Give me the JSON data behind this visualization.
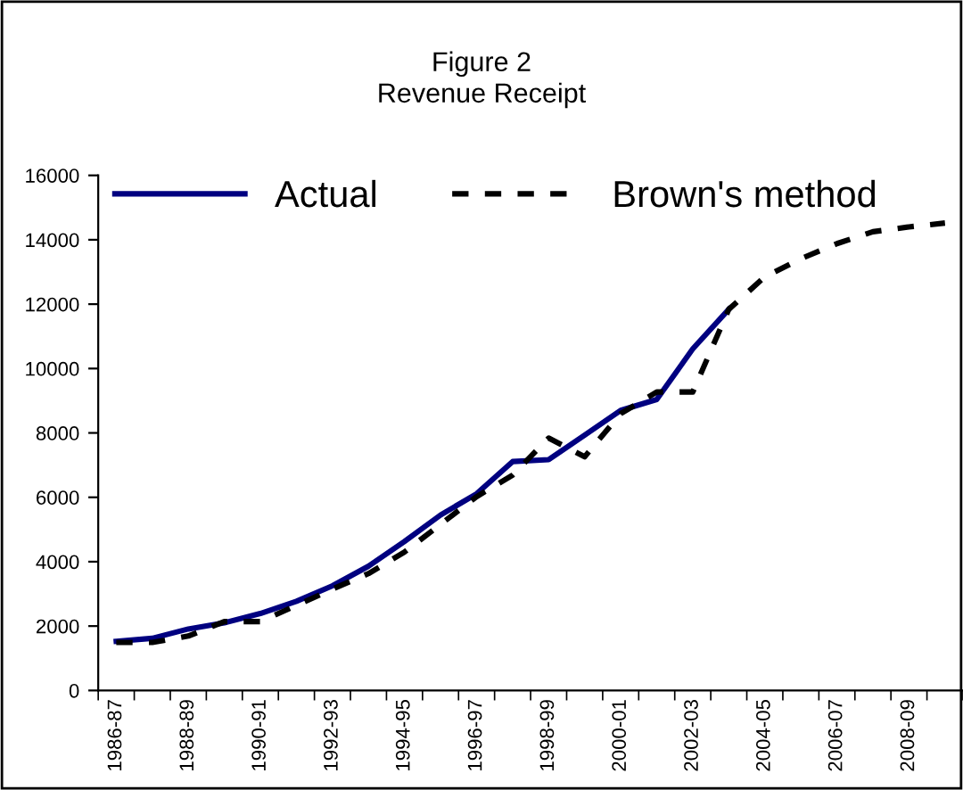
{
  "chart_data": {
    "type": "line",
    "title": "Figure 2\nRevenue Receipt",
    "categories": [
      "1986-87",
      null,
      "1988-89",
      null,
      "1990-91",
      null,
      "1992-93",
      null,
      "1994-95",
      null,
      "1996-97",
      null,
      "1998-99",
      null,
      "2000-01",
      null,
      "2002-03",
      null,
      "2004-05",
      null,
      "2006-07",
      null,
      "2008-09",
      null
    ],
    "series": [
      {
        "name": "Actual",
        "color": "#000080",
        "line_style": "solid",
        "values": [
          1525,
          1620,
          1910,
          2100,
          2390,
          2770,
          3250,
          3860,
          4630,
          5450,
          6110,
          7110,
          7170,
          7930,
          8700,
          9040,
          10610,
          11840,
          null,
          null,
          null,
          null,
          null,
          null
        ]
      },
      {
        "name": "Brown's method",
        "color": "#000000",
        "line_style": "dashed",
        "values": [
          1490,
          1490,
          1690,
          2140,
          2140,
          2640,
          3150,
          3630,
          4300,
          5160,
          6020,
          6690,
          7840,
          7260,
          8600,
          9270,
          9270,
          11840,
          12850,
          13410,
          13880,
          14250,
          14400,
          14520
        ]
      }
    ],
    "ylim": [
      0,
      16000
    ],
    "yticks": [
      0,
      2000,
      4000,
      6000,
      8000,
      10000,
      12000,
      14000,
      16000
    ],
    "grid": false,
    "legend": "top",
    "marker": "none"
  }
}
